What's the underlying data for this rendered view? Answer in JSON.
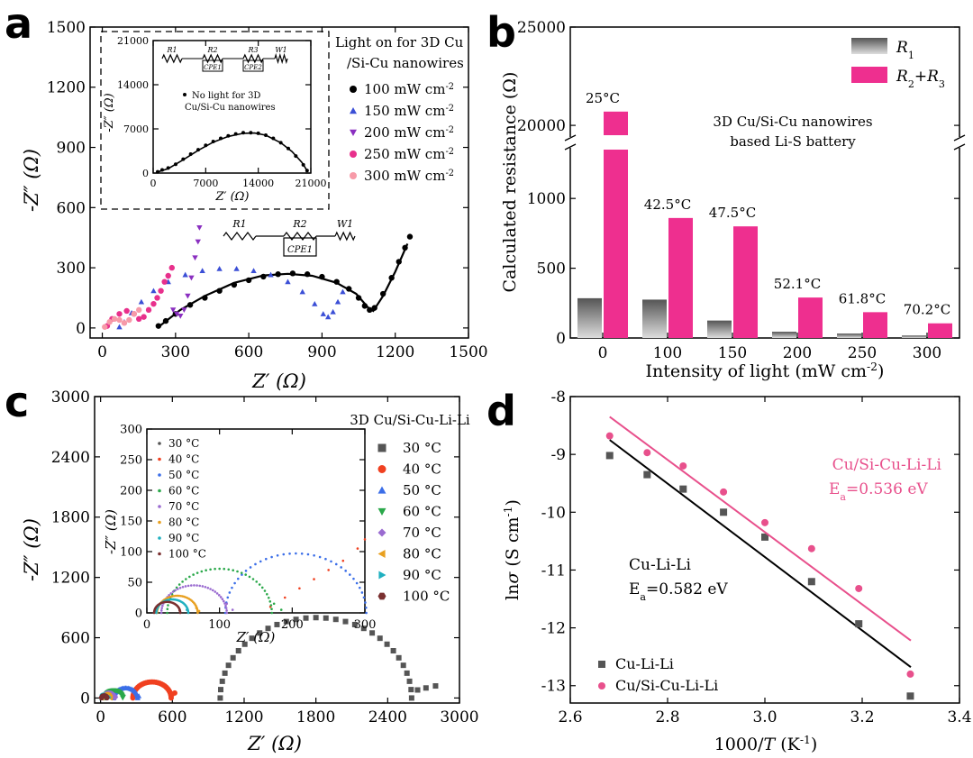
{
  "chart_data": [
    {
      "panel": "a",
      "type": "scatter",
      "xlabel": "Z′ (Ω)",
      "ylabel": "-Z″ (Ω)",
      "xlim": [
        -50,
        1500
      ],
      "ylim": [
        -50,
        1500
      ],
      "xticks": [
        0,
        300,
        600,
        900,
        1200,
        1500
      ],
      "yticks": [
        0,
        300,
        600,
        900,
        1200,
        1500
      ],
      "legend_title": [
        "Light on for 3D Cu",
        "/Si-Cu nanowires"
      ],
      "unit_base": "mW cm",
      "unit_sup": "-2",
      "circuit_labels": [
        "R1",
        "R2",
        "W1",
        "CPE1"
      ],
      "series": [
        {
          "name": "100",
          "color": "#000000",
          "marker": "circle",
          "points": [
            [
              230,
              10
            ],
            [
              260,
              35
            ],
            [
              300,
              70
            ],
            [
              360,
              115
            ],
            [
              420,
              150
            ],
            [
              480,
              185
            ],
            [
              540,
              215
            ],
            [
              600,
              238
            ],
            [
              660,
              256
            ],
            [
              720,
              268
            ],
            [
              780,
              272
            ],
            [
              840,
              268
            ],
            [
              900,
              255
            ],
            [
              960,
              230
            ],
            [
              1010,
              195
            ],
            [
              1050,
              150
            ],
            [
              1075,
              110
            ],
            [
              1095,
              90
            ],
            [
              1115,
              100
            ],
            [
              1150,
              170
            ],
            [
              1185,
              250
            ],
            [
              1215,
              330
            ],
            [
              1240,
              400
            ],
            [
              1260,
              455
            ]
          ],
          "fit": [
            [
              230,
              5
            ],
            [
              320,
              90
            ],
            [
              420,
              160
            ],
            [
              540,
              225
            ],
            [
              660,
              262
            ],
            [
              760,
              270
            ],
            [
              860,
              260
            ],
            [
              960,
              225
            ],
            [
              1040,
              170
            ],
            [
              1090,
              100
            ],
            [
              1110,
              85
            ],
            [
              1150,
              160
            ],
            [
              1200,
              280
            ],
            [
              1250,
              420
            ]
          ]
        },
        {
          "name": "150",
          "color": "#3b4fd6",
          "marker": "triangle",
          "points": [
            [
              70,
              5
            ],
            [
              90,
              30
            ],
            [
              120,
              75
            ],
            [
              160,
              130
            ],
            [
              210,
              185
            ],
            [
              270,
              230
            ],
            [
              340,
              265
            ],
            [
              410,
              285
            ],
            [
              480,
              295
            ],
            [
              550,
              295
            ],
            [
              620,
              285
            ],
            [
              690,
              265
            ],
            [
              760,
              230
            ],
            [
              820,
              180
            ],
            [
              870,
              120
            ],
            [
              905,
              70
            ],
            [
              925,
              55
            ],
            [
              945,
              80
            ],
            [
              965,
              130
            ],
            [
              985,
              180
            ]
          ]
        },
        {
          "name": "200",
          "color": "#8a2fc0",
          "marker": "tri-down",
          "points": [
            [
              290,
              90
            ],
            [
              305,
              70
            ],
            [
              320,
              60
            ],
            [
              335,
              90
            ],
            [
              350,
              160
            ],
            [
              365,
              250
            ],
            [
              380,
              350
            ],
            [
              392,
              430
            ],
            [
              398,
              500
            ]
          ]
        },
        {
          "name": "250",
          "color": "#e8308c",
          "marker": "circle",
          "points": [
            [
              20,
              10
            ],
            [
              40,
              45
            ],
            [
              70,
              70
            ],
            [
              100,
              85
            ],
            [
              130,
              70
            ],
            [
              150,
              45
            ],
            [
              170,
              55
            ],
            [
              190,
              90
            ],
            [
              210,
              120
            ],
            [
              225,
              150
            ],
            [
              240,
              185
            ],
            [
              255,
              230
            ],
            [
              270,
              260
            ],
            [
              285,
              300
            ]
          ]
        },
        {
          "name": "300",
          "color": "#f79aa8",
          "marker": "circle",
          "points": [
            [
              10,
              5
            ],
            [
              30,
              30
            ],
            [
              50,
              45
            ],
            [
              70,
              40
            ],
            [
              90,
              25
            ],
            [
              110,
              40
            ],
            [
              130,
              70
            ],
            [
              150,
              90
            ]
          ]
        }
      ],
      "inset": {
        "xlim": [
          0,
          21000
        ],
        "ylim": [
          0,
          21000
        ],
        "xticks": [
          0,
          7000,
          14000,
          21000
        ],
        "yticks": [
          0,
          7000,
          14000,
          21000
        ],
        "xlabel": "Z′ (Ω)",
        "ylabel": "-Z″ (Ω)",
        "note": [
          "No light for 3D",
          "Cu/Si-Cu nanowires"
        ],
        "circuit_labels": [
          "R1",
          "R2",
          "R3",
          "W1",
          "CPE1",
          "CPE2"
        ],
        "points": [
          [
            600,
            200
          ],
          [
            1200,
            500
          ],
          [
            2000,
            800
          ],
          [
            3000,
            1400
          ],
          [
            4000,
            2200
          ],
          [
            5000,
            3000
          ],
          [
            6000,
            3700
          ],
          [
            7000,
            4400
          ],
          [
            8000,
            5000
          ],
          [
            9000,
            5500
          ],
          [
            10000,
            5900
          ],
          [
            11000,
            6200
          ],
          [
            12000,
            6400
          ],
          [
            13000,
            6400
          ],
          [
            14000,
            6300
          ],
          [
            15000,
            6000
          ],
          [
            16000,
            5500
          ],
          [
            17000,
            4800
          ],
          [
            18000,
            3900
          ],
          [
            19000,
            2700
          ],
          [
            20000,
            1300
          ],
          [
            20500,
            400
          ]
        ],
        "fit": [
          [
            400,
            100
          ],
          [
            2000,
            700
          ],
          [
            4000,
            2100
          ],
          [
            6000,
            3600
          ],
          [
            8000,
            4900
          ],
          [
            10000,
            5800
          ],
          [
            12000,
            6300
          ],
          [
            13500,
            6350
          ],
          [
            15000,
            6000
          ],
          [
            17000,
            4800
          ],
          [
            18500,
            3400
          ],
          [
            19800,
            1700
          ],
          [
            20600,
            200
          ]
        ]
      }
    },
    {
      "panel": "b",
      "type": "bar",
      "xlabel_base": "Intensity of light (mW cm",
      "xlabel_sup": "-2",
      "xlabel_end": ")",
      "ylabel": "Calculated resistance (Ω)",
      "categories": [
        "0",
        "100",
        "150",
        "200",
        "250",
        "300"
      ],
      "yticks_low": [
        0,
        500,
        1000
      ],
      "yticks_high": [
        20000,
        25000
      ],
      "ylim_low": [
        0,
        1350
      ],
      "ylim_high": [
        19500,
        25000
      ],
      "series": [
        {
          "name": "R1",
          "color": "#777777",
          "values": [
            285,
            275,
            125,
            45,
            32,
            18
          ]
        },
        {
          "name": "R2+R3",
          "color": "#ee2f8f",
          "values": [
            20700,
            860,
            800,
            290,
            185,
            105
          ]
        }
      ],
      "legend": [
        {
          "base": "R",
          "sub": "1",
          "rest": ""
        },
        {
          "base": "R",
          "sub": "2",
          "rest": "+R",
          "sub2": "3"
        }
      ],
      "temperatures": [
        "25°C",
        "42.5°C",
        "47.5°C",
        "52.1°C",
        "61.8°C",
        "70.2°C"
      ],
      "annotation": [
        "3D Cu/Si-Cu nanowires",
        "based Li-S battery"
      ]
    },
    {
      "panel": "c",
      "type": "scatter",
      "title": "3D Cu/Si-Cu-Li-Li",
      "xlabel": "Z′ (Ω)",
      "ylabel": "-Z″ (Ω)",
      "xlim": [
        -50,
        3000
      ],
      "ylim": [
        -50,
        3000
      ],
      "xticks": [
        0,
        600,
        1200,
        1800,
        2400,
        3000
      ],
      "yticks": [
        0,
        600,
        1200,
        1800,
        2400,
        3000
      ],
      "series": [
        {
          "name": "30 °C",
          "color": "#555555",
          "marker": "square",
          "center": 1800,
          "radius": 800,
          "tail": [
            [
              2650,
              80
            ],
            [
              2720,
              100
            ],
            [
              2800,
              120
            ]
          ]
        },
        {
          "name": "40 °C",
          "color": "#f04020",
          "marker": "circle",
          "center": 430,
          "radius": 160,
          "tail": [
            [
              600,
              40
            ],
            [
              620,
              50
            ]
          ]
        },
        {
          "name": "50 °C",
          "color": "#3b6ee8",
          "marker": "triangle",
          "center": 210,
          "radius": 100,
          "tail": [
            [
              320,
              20
            ]
          ]
        },
        {
          "name": "60 °C",
          "color": "#2aa84a",
          "marker": "tri-down",
          "center": 110,
          "radius": 75,
          "tail": [
            [
              190,
              10
            ]
          ]
        },
        {
          "name": "70 °C",
          "color": "#9a6bd0",
          "marker": "diamond",
          "center": 70,
          "radius": 50,
          "tail": [
            [
              125,
              10
            ]
          ]
        },
        {
          "name": "80 °C",
          "color": "#e8a020",
          "marker": "triangle-left",
          "center": 45,
          "radius": 35,
          "tail": [
            [
              85,
              5
            ]
          ]
        },
        {
          "name": "90 °C",
          "color": "#20b0c0",
          "marker": "triangle-right",
          "center": 38,
          "radius": 28,
          "tail": [
            [
              70,
              5
            ]
          ]
        },
        {
          "name": "100 °C",
          "color": "#7a3030",
          "marker": "hexagon",
          "center": 30,
          "radius": 22,
          "tail": [
            [
              55,
              5
            ]
          ]
        }
      ],
      "inset": {
        "xlim": [
          0,
          300
        ],
        "ylim": [
          0,
          300
        ],
        "xticks": [
          0,
          100,
          200,
          300
        ],
        "yticks": [
          0,
          50,
          100,
          150,
          200,
          250,
          300
        ],
        "xlabel": "Z′ (Ω)",
        "ylabel": "-Z″ (Ω)",
        "arcs": [
          {
            "name": "30 °C",
            "color": "#555555",
            "cx": 0,
            "r": 0
          },
          {
            "name": "40 °C",
            "color": "#f04020",
            "cx": 0,
            "r": 0,
            "tail": [
              [
                170,
                10
              ],
              [
                190,
                25
              ],
              [
                210,
                40
              ],
              [
                230,
                55
              ],
              [
                250,
                70
              ],
              [
                270,
                85
              ],
              [
                290,
                105
              ],
              [
                300,
                120
              ]
            ]
          },
          {
            "name": "50 °C",
            "color": "#3b6ee8",
            "cx": 205,
            "r": 97
          },
          {
            "name": "60 °C",
            "color": "#2aa84a",
            "cx": 100,
            "r": 72,
            "tail": [
              [
                175,
                15
              ],
              [
                185,
                5
              ]
            ]
          },
          {
            "name": "70 °C",
            "color": "#9a6bd0",
            "cx": 65,
            "r": 45,
            "tail": [
              [
                110,
                15
              ],
              [
                118,
                5
              ]
            ]
          },
          {
            "name": "80 °C",
            "color": "#e8a020",
            "cx": 42,
            "r": 28,
            "tail": [
              [
                68,
                8
              ],
              [
                72,
                3
              ]
            ]
          },
          {
            "name": "90 °C",
            "color": "#20b0c0",
            "cx": 35,
            "r": 22,
            "tail": [
              [
                55,
                5
              ]
            ]
          },
          {
            "name": "100 °C",
            "color": "#7a3030",
            "cx": 28,
            "r": 18,
            "tail": [
              [
                45,
                4
              ]
            ]
          }
        ]
      }
    },
    {
      "panel": "d",
      "type": "scatter",
      "xlabel_pre": "1000/",
      "xlabel_var": "T",
      "xlabel_post": " (K",
      "xlabel_sup": "-1",
      "xlabel_end": ")",
      "ylabel_pre": "ln",
      "ylabel_var": "σ",
      "ylabel_post": " (S cm",
      "ylabel_sup": "-1",
      "ylabel_end": ")",
      "xlim": [
        2.6,
        3.4
      ],
      "ylim": [
        -13.3,
        -8
      ],
      "xticks": [
        "2.6",
        "2.8",
        "3.0",
        "3.2",
        "3.4"
      ],
      "yticks": [
        "-8",
        "-9",
        "-10",
        "-11",
        "-12",
        "-13"
      ],
      "series": [
        {
          "name": "Cu-Li-Li",
          "color": "#555555",
          "line_color": "#000000",
          "marker": "square",
          "x": [
            2.681,
            2.758,
            2.832,
            2.915,
            3.0,
            3.096,
            3.193,
            3.299
          ],
          "y": [
            -9.02,
            -9.35,
            -9.6,
            -10.0,
            -10.43,
            -11.2,
            -11.93,
            -13.18
          ],
          "fit": {
            "x": [
              2.681,
              3.3
            ],
            "y": [
              -8.75,
              -12.68
            ]
          },
          "label": "Cu-Li-Li",
          "ea": "=0.582 eV"
        },
        {
          "name": "Cu/Si-Cu-Li-Li",
          "color": "#e8508c",
          "line_color": "#e8508c",
          "marker": "circle",
          "x": [
            2.681,
            2.758,
            2.832,
            2.915,
            3.0,
            3.096,
            3.193,
            3.299
          ],
          "y": [
            -8.68,
            -8.97,
            -9.2,
            -9.65,
            -10.18,
            -10.63,
            -11.32,
            -12.8
          ],
          "fit": {
            "x": [
              2.681,
              3.3
            ],
            "y": [
              -8.35,
              -12.22
            ]
          },
          "label": "Cu/Si-Cu-Li-Li",
          "ea": "=0.536 eV"
        }
      ]
    }
  ],
  "panel_letters": [
    "a",
    "b",
    "c",
    "d"
  ]
}
